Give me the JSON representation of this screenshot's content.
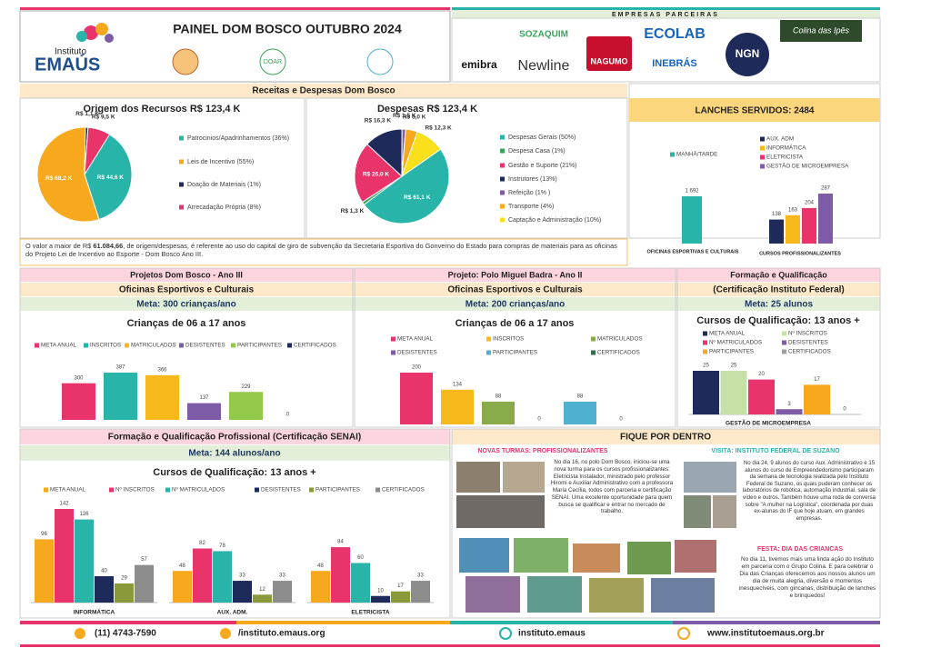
{
  "header": {
    "logo_top": "Instituto",
    "logo_main": "EMAÚS",
    "title": "PAINEL DOM BOSCO OUTUBRO 2024",
    "seal": "DOAR",
    "partners_title": "EMPRESAS PARCEIRAS",
    "partners": [
      "emibra",
      "SOZAQUIM",
      "Newline",
      "NAGUMO",
      "ECOLAB",
      "INEBRÁS",
      "NGN",
      "Colina das Ipês"
    ]
  },
  "finance": {
    "band": "Receitas  e  Despesas Dom Bosco",
    "note_before": "O valor a maior de R$ ",
    "note_bold": "61.084,66",
    "note_after": ", de origem/despesas, é referente ao uso do capital de giro de subvenção da Secretaria Esportiva do Gonverno do Estado para compras de materiais para as oficinas do Projeto Lei de Incentivo ao Esporte - Dom Bosco Ano III."
  },
  "lanches": {
    "title": "LANCHES SERVIDOS: 2484"
  },
  "projects": [
    {
      "title": "Projetos Dom Bosco - Ano III",
      "subtitle": "Oficinas Esportivos e Culturais",
      "meta": "Meta: 300 crianças/ano"
    },
    {
      "title": "Projeto: Polo Miguel Badra - Ano II",
      "subtitle": "Oficinas Esportivos e Culturais",
      "meta": "Meta: 200 crianças/ano"
    },
    {
      "title": "Formação e Qualificação",
      "subtitle": "(Certificação Instituto Federal)",
      "meta": "Meta: 25 alunos"
    }
  ],
  "senai": {
    "title": "Formação e Qualificação Profissional (Certificação SENAI)",
    "meta": "Meta:  144 alunos/ano"
  },
  "news": {
    "title": "FIQUE POR DENTRO",
    "items": [
      {
        "title": "NOVAS TURMAS: PROFISSIONALIZANTES",
        "text": "No dia 16, no polo Dom Bosco, iniciou-se uma nova turma para os cursos profissionalizantes: Eletricista Instalador, ministrado pelo professor Hiromi e Auxiliar Administrativo com a professora Maria Cecília, todos com parceria e certificação SENAI. Uma excelente oportunidade para quem busca se qualificar e entrar no mercado de trabalho."
      },
      {
        "title": "VISITA: INSTITUTO FEDERAL DE SUZANO",
        "text": "No dia 24, 9 alunos do curso Aux. Administrativo e 15 alunos do curso de Empreendedorismo participaram da semana de tecnologia realizada pelo Instituto Federal de Suzano, os quais puderam conhecer os laboratórios de robótica, automação industrial, sala de vídeo e outros. Também houve uma roda de conversa sobre \"A mulher na Logística\", coordenada por duas ex-alunas do IF que hoje atuam, em grandes empresas."
      },
      {
        "title": "FESTA: DIA DAS CRIANCAS",
        "text": "No dia 11, tivemos mais uma linda ação do Instituto em parceria com o Grupo Colina. E para celebrar o Dia das Crianças oferecemos aos nossos alunos um dia de muita alegria, diversão e momentos inesquecíveis, com gincanas, distribuição de lanches e brinquedos!"
      }
    ]
  },
  "footer": {
    "phone": "(11) 4743-7590",
    "facebook": "/instituto.emaus.org",
    "instagram": "instituto.emaus",
    "site": "www.institutoemaus.org.br"
  },
  "chart_data": [
    {
      "type": "pie",
      "title": "Origem dos Recursos R$ 123,4 K",
      "labels": [
        "Patrocinios/Apadrinhamentos (36%)",
        "Leis de Incentivo (55%)",
        "Doação de Materiais (1%)",
        "Arrecadação Própria (8%)"
      ],
      "values": [
        44.6,
        68.2,
        1.1,
        9.5
      ],
      "value_labels": [
        "R$ 44,6 K",
        "R$ 68,2 K",
        "R$ 1,1 K",
        "R$ 9,5 K"
      ],
      "colors": [
        "#28b4a8",
        "#f7a81c",
        "#1e2a5a",
        "#e8336b"
      ]
    },
    {
      "type": "pie",
      "title": "Despesas R$ 123,4 K",
      "labels": [
        "Despesas Gerais (50%)",
        "Despesa Casa (1%)",
        "Gestão e Suporte (21%)",
        "Instrutores (13%)",
        "Refeição (1% )",
        "Transporte (4%)",
        "Captação e Administração (10%)"
      ],
      "values": [
        61.1,
        1.3,
        26.0,
        16.3,
        1.5,
        5.0,
        12.3
      ],
      "value_labels": [
        "R$ 61,1 K",
        "R$ 1,3 K",
        "R$ 26,0 K",
        "R$ 16,3 K",
        "R$ 1,5 K",
        "R$ 5,0 K",
        "R$ 12,3 K"
      ],
      "colors": [
        "#28b4a8",
        "#3aa35b",
        "#e8336b",
        "#1e2a5a",
        "#7d5ba6",
        "#f7a81c",
        "#f9e01b"
      ]
    },
    {
      "type": "bar",
      "categories": [
        "OFICINAS ESPORTIVAS E CULTURAIS"
      ],
      "series": [
        {
          "name": "MANHÃ/TARDE",
          "color": "#28b4a8",
          "values": [
            1692
          ],
          "value_labels": [
            "1 692"
          ]
        }
      ]
    },
    {
      "type": "bar",
      "categories": [
        "CURSOS PROFISSIONALIZANTES"
      ],
      "series": [
        {
          "name": "AUX. ADM",
          "color": "#1e2a5a",
          "values": [
            138
          ]
        },
        {
          "name": "INFORMÁTICA",
          "color": "#f7b81c",
          "values": [
            163
          ]
        },
        {
          "name": "ELETRICISTA",
          "color": "#e8336b",
          "values": [
            204
          ]
        },
        {
          "name": "GESTÃO DE MICROEMPRESA",
          "color": "#7d5ba6",
          "values": [
            287
          ]
        }
      ]
    },
    {
      "type": "bar",
      "title": "Crianças de 06 a 17 anos",
      "series": [
        {
          "name": "META ANUAL",
          "color": "#e8336b",
          "values": [
            300
          ]
        },
        {
          "name": "INSCRITOS",
          "color": "#28b4a8",
          "values": [
            387
          ]
        },
        {
          "name": "MATRICULADOS",
          "color": "#f7b81c",
          "values": [
            366
          ]
        },
        {
          "name": "DESISTENTES",
          "color": "#7d5ba6",
          "values": [
            137
          ]
        },
        {
          "name": "PARTICIPANTES",
          "color": "#93c94b",
          "values": [
            229
          ]
        },
        {
          "name": "CERTIFICADOS",
          "color": "#1e2a5a",
          "values": [
            0
          ]
        }
      ]
    },
    {
      "type": "bar",
      "title": "Crianças de 06 a 17 anos",
      "series": [
        {
          "name": "META ANUAL",
          "color": "#e8336b",
          "values": [
            200
          ]
        },
        {
          "name": "INSCRITOS",
          "color": "#f7b81c",
          "values": [
            134
          ]
        },
        {
          "name": "MATRICULADOS",
          "color": "#8aab4a",
          "values": [
            88
          ]
        },
        {
          "name": "DESISTENTES",
          "color": "#7d5ba6",
          "values": [
            0
          ]
        },
        {
          "name": "PARTICIPANTES",
          "color": "#4fb0cf",
          "values": [
            88
          ]
        },
        {
          "name": "CERTIFICADOS",
          "color": "#2d6e4e",
          "values": [
            0
          ]
        }
      ]
    },
    {
      "type": "bar",
      "title": "Cursos de Qualificação: 13 anos +",
      "categories": [
        "GESTÃO DE MICROEMPRESA"
      ],
      "series": [
        {
          "name": "META ANUAL",
          "color": "#1e2a5a",
          "values": [
            25
          ]
        },
        {
          "name": "Nº INSCRITOS",
          "color": "#c6e0a7",
          "values": [
            25
          ]
        },
        {
          "name": "Nº MATRICULADOS",
          "color": "#e8336b",
          "values": [
            20
          ]
        },
        {
          "name": "DESISTENTES",
          "color": "#7d5ba6",
          "values": [
            3
          ]
        },
        {
          "name": "PARTICIPANTES",
          "color": "#f7a81c",
          "values": [
            17
          ]
        },
        {
          "name": "CERTIFICADOS",
          "color": "#9e9e9e",
          "values": [
            0
          ]
        }
      ]
    },
    {
      "type": "bar",
      "title": "Cursos de Qualificação: 13 anos +",
      "categories": [
        "INFORMÁTICA",
        "AUX. ADM.",
        "ELETRICISTA"
      ],
      "series": [
        {
          "name": "META ANUAL",
          "color": "#f7a81c",
          "values": [
            96,
            48,
            48
          ]
        },
        {
          "name": "Nº INSCRITOS",
          "color": "#e8336b",
          "values": [
            142,
            82,
            84
          ]
        },
        {
          "name": "Nº MATRICULADOS",
          "color": "#28b4a8",
          "values": [
            126,
            78,
            60
          ]
        },
        {
          "name": "DESISTENTES",
          "color": "#1e2a5a",
          "values": [
            40,
            33,
            10
          ]
        },
        {
          "name": "PARTICIPANTES",
          "color": "#8a9a3b",
          "values": [
            29,
            12,
            17
          ]
        },
        {
          "name": "CERTIFICADOS",
          "color": "#8c8c8c",
          "values": [
            57,
            33,
            33
          ]
        }
      ]
    }
  ]
}
